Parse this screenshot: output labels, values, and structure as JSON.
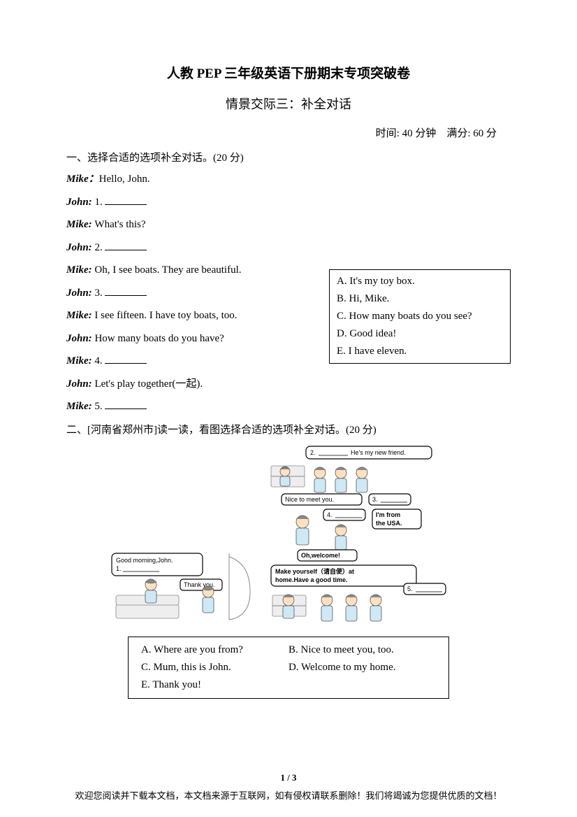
{
  "title_main": "人教 PEP 三年级英语下册期末专项突破卷",
  "title_sub": "情景交际三：补全对话",
  "meta": "时间: 40 分钟　满分: 60 分",
  "section1": {
    "header": "一、选择合适的选项补全对话。(20 分)",
    "lines": [
      {
        "speaker": "Mike：",
        "text": "Hello, John."
      },
      {
        "speaker": "John: ",
        "text_prefix": "1. ",
        "blank": true
      },
      {
        "speaker": "Mike: ",
        "text": "What's this?"
      },
      {
        "speaker": "John: ",
        "text_prefix": "2. ",
        "blank": true
      },
      {
        "speaker": "Mike: ",
        "text": "Oh, I see boats. They are beautiful."
      },
      {
        "speaker": "John: ",
        "text_prefix": "3. ",
        "blank": true
      },
      {
        "speaker": "Mike: ",
        "text": "I see fifteen. I have toy boats, too."
      },
      {
        "speaker": "John: ",
        "text": "How many boats do you have?"
      },
      {
        "speaker": "Mike: ",
        "text_prefix": "4. ",
        "blank": true
      },
      {
        "speaker": "John: ",
        "text": "Let's play together(一起)."
      },
      {
        "speaker": "Mike: ",
        "text_prefix": "5. ",
        "blank": true
      }
    ],
    "options": [
      "A. It's my toy box.",
      "B. Hi, Mike.",
      "C. How many boats do you see?",
      "D. Good idea!",
      "E. I have eleven."
    ]
  },
  "section2": {
    "header": "二、[河南省郑州市]读一读，看图选择合适的选项补全对话。(20 分)",
    "bubbles": {
      "b1_prefix": "Good morning,John.",
      "b1_blank_num": "1.",
      "b_thank": "Thank you.",
      "b2_num": "2.",
      "b2_text": "He's my new friend.",
      "b_nice": "Nice to meet you.",
      "b3_num": "3.",
      "b4_num": "4.",
      "b_usa1": "I'm from",
      "b_usa2": "the USA.",
      "b_welcome": "Oh,welcome!",
      "b_make1": "Make yourself（请自便）at",
      "b_make2": "home.Have a good time.",
      "b5_num": "5."
    },
    "options": [
      [
        "A. Where are you from?",
        "B. Nice to meet you, too."
      ],
      [
        "C. Mum, this is John.",
        "D. Welcome to my home."
      ],
      [
        "E. Thank you!",
        ""
      ]
    ]
  },
  "page_num": "1 / 3",
  "footer": "欢迎您阅读并下载本文档，本文档来源于互联网，如有侵权请联系删除！我们将竭诚为您提供优质的文档！"
}
